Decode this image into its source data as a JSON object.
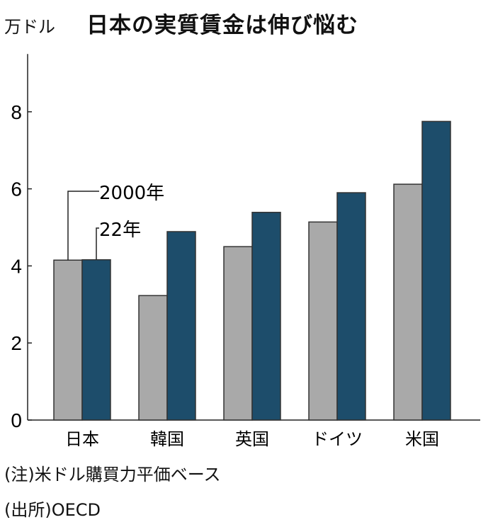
{
  "chart_data": {
    "type": "bar",
    "title": "日本の実質賃金は伸び悩む",
    "ylabel": "万ドル",
    "xlabel": "",
    "ylim": [
      0,
      9.5
    ],
    "yticks": [
      0,
      2,
      4,
      6,
      8
    ],
    "categories": [
      "日本",
      "韓国",
      "英国",
      "ドイツ",
      "米国"
    ],
    "series": [
      {
        "name": "2000年",
        "color": "#a9a9a9",
        "values": [
          4.15,
          3.23,
          4.5,
          5.14,
          6.12
        ]
      },
      {
        "name": "22年",
        "color": "#1d4d6b",
        "values": [
          4.16,
          4.89,
          5.39,
          5.9,
          7.75
        ]
      }
    ],
    "legend": "inline labels above Japan bars",
    "grid": false
  },
  "notes": {
    "note": "(注)米ドル購買力平価ベース",
    "source": "(出所)OECD"
  }
}
